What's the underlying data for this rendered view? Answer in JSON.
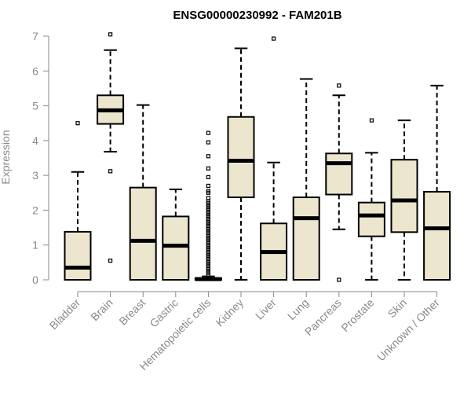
{
  "colors": {
    "box_fill": "#ece6cf",
    "stroke": "#000000",
    "axis_text": "#8a8a8a",
    "axis_line": "#8a8a8a"
  },
  "chart_data": {
    "type": "boxplot",
    "title": "ENSG00000230992 - FAM201B",
    "xlabel": "",
    "ylabel": "Expression",
    "ylim": [
      0,
      7
    ],
    "yticks": [
      0,
      1,
      2,
      3,
      4,
      5,
      6,
      7
    ],
    "categories": [
      "Bladder",
      "Brain",
      "Breast",
      "Gastric",
      "Hematopoietic cells",
      "Kidney",
      "Liver",
      "Lung",
      "Pancreas",
      "Prostate",
      "Skin",
      "Unknown / Other"
    ],
    "boxes": [
      {
        "name": "Bladder",
        "whisker_low": 0,
        "q1": 0,
        "median": 0.35,
        "q3": 1.38,
        "whisker_high": 3.1,
        "outliers": [
          4.5
        ]
      },
      {
        "name": "Brain",
        "whisker_low": 3.68,
        "q1": 4.48,
        "median": 4.87,
        "q3": 5.3,
        "whisker_high": 6.6,
        "outliers": [
          0.55,
          3.12,
          7.05
        ]
      },
      {
        "name": "Breast",
        "whisker_low": 0,
        "q1": 0,
        "median": 1.12,
        "q3": 2.65,
        "whisker_high": 5.02,
        "outliers": []
      },
      {
        "name": "Gastric",
        "whisker_low": 0,
        "q1": 0,
        "median": 0.98,
        "q3": 1.82,
        "whisker_high": 2.6,
        "outliers": []
      },
      {
        "name": "Hematopoietic cells",
        "whisker_low": 0,
        "q1": 0,
        "median": 0.02,
        "q3": 0.05,
        "whisker_high": 0.1,
        "outliers": [
          0.15,
          0.2,
          0.25,
          0.3,
          0.35,
          0.4,
          0.45,
          0.5,
          0.55,
          0.6,
          0.65,
          0.7,
          0.75,
          0.8,
          0.85,
          0.9,
          0.95,
          1.0,
          1.05,
          1.1,
          1.15,
          1.2,
          1.25,
          1.3,
          1.35,
          1.4,
          1.45,
          1.5,
          1.55,
          1.6,
          1.65,
          1.7,
          1.75,
          1.8,
          1.85,
          1.9,
          1.95,
          2.0,
          2.05,
          2.1,
          2.15,
          2.2,
          2.25,
          2.35,
          2.5,
          2.55,
          2.7,
          2.95,
          3.2,
          3.55,
          3.95,
          4.22
        ]
      },
      {
        "name": "Kidney",
        "whisker_low": 0,
        "q1": 2.37,
        "median": 3.42,
        "q3": 4.68,
        "whisker_high": 6.65,
        "outliers": []
      },
      {
        "name": "Liver",
        "whisker_low": 0,
        "q1": 0,
        "median": 0.8,
        "q3": 1.62,
        "whisker_high": 3.37,
        "outliers": [
          6.93
        ]
      },
      {
        "name": "Lung",
        "whisker_low": 0,
        "q1": 0,
        "median": 1.77,
        "q3": 2.37,
        "whisker_high": 5.77,
        "outliers": []
      },
      {
        "name": "Pancreas",
        "whisker_low": 1.45,
        "q1": 2.45,
        "median": 3.35,
        "q3": 3.63,
        "whisker_high": 5.3,
        "outliers": [
          0,
          5.58
        ]
      },
      {
        "name": "Prostate",
        "whisker_low": 0,
        "q1": 1.25,
        "median": 1.85,
        "q3": 2.22,
        "whisker_high": 3.65,
        "outliers": [
          4.58
        ]
      },
      {
        "name": "Skin",
        "whisker_low": 0,
        "q1": 1.37,
        "median": 2.28,
        "q3": 3.45,
        "whisker_high": 4.58,
        "outliers": []
      },
      {
        "name": "Unknown / Other",
        "whisker_low": 0,
        "q1": 0,
        "median": 1.48,
        "q3": 2.53,
        "whisker_high": 5.58,
        "outliers": []
      }
    ]
  }
}
